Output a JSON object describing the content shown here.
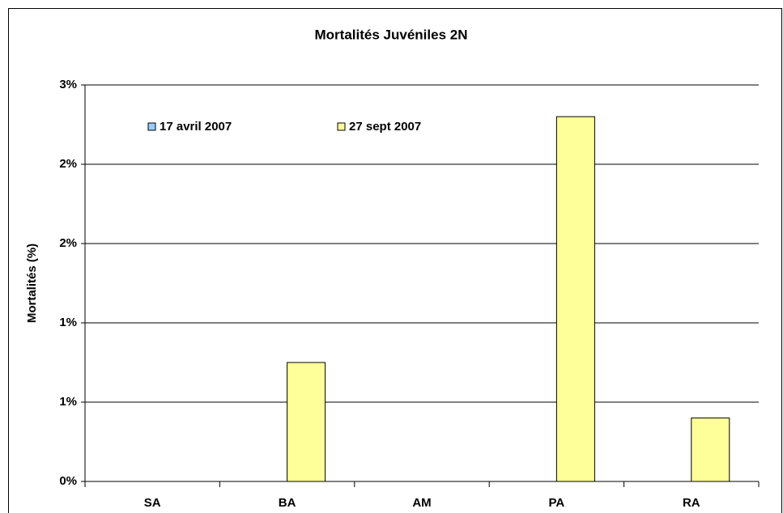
{
  "chart_data": {
    "type": "bar",
    "title": "Mortalités Juvéniles 2N",
    "y_label": "Mortalités (%)",
    "categories": [
      "SA",
      "BA",
      "AM",
      "PA",
      "RA"
    ],
    "series": [
      {
        "name": "17 avril 2007",
        "color": "#99ccff",
        "values": [
          0,
          0,
          0,
          0,
          0
        ]
      },
      {
        "name": "27 sept 2007",
        "color": "#ffff99",
        "values": [
          0,
          0.9,
          0,
          2.76,
          0.48
        ]
      }
    ],
    "ylim": [
      0,
      3
    ],
    "yticks": [
      {
        "value": 0,
        "label": "0%"
      },
      {
        "value": 0.6,
        "label": "1%"
      },
      {
        "value": 1.2,
        "label": "1%"
      },
      {
        "value": 1.8,
        "label": "2%"
      },
      {
        "value": 2.4,
        "label": "2%"
      },
      {
        "value": 3,
        "label": "3%"
      }
    ],
    "grid": true
  }
}
